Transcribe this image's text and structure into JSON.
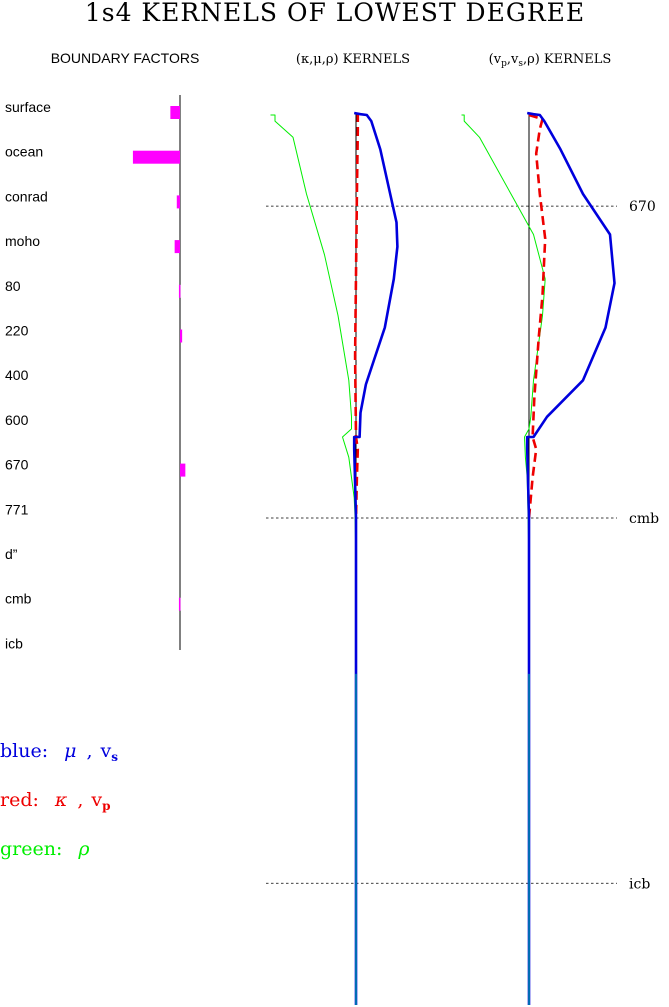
{
  "title": "1s4 KERNELS OF LOWEST DEGREE",
  "boundary_panel_title": "BOUNDARY FACTORS",
  "kernel_panel_1_title": "(κ,μ,ρ) KERNELS",
  "kernel_panel_2_title_parts": {
    "open": "(v",
    "p": "p",
    "sep1": ",v",
    "s": "s",
    "rest": ",ρ) KERNELS"
  },
  "reference_depths": [
    "670",
    "cmb",
    "icb"
  ],
  "legend": [
    {
      "color_name": "blue",
      "text": "blue:",
      "sym1": "μ",
      "sym2": "v",
      "sub": "s",
      "color": "#0000dd"
    },
    {
      "color_name": "red",
      "text": "red:",
      "sym1": "κ",
      "sym2": "v",
      "sub": "p",
      "color": "#ee0000"
    },
    {
      "color_name": "green",
      "text": "green:",
      "sym1": "ρ",
      "color": "#00ee00"
    }
  ],
  "chart_data": {
    "type": "line",
    "boundary_factors": {
      "type": "bar",
      "orientation": "horizontal",
      "color": "#ff00ff",
      "categories": [
        "surface",
        "ocean",
        "conrad",
        "moho",
        "80",
        "220",
        "400",
        "600",
        "670",
        "771",
        "d”",
        "cmb",
        "icb"
      ],
      "values": [
        -0.09,
        -0.44,
        -0.03,
        -0.05,
        -0.01,
        0.02,
        0,
        0,
        0.05,
        0,
        0,
        -0.01,
        0
      ]
    },
    "panels": [
      {
        "title": "(κ,μ,ρ) KERNELS",
        "series": [
          {
            "name": "μ",
            "color": "#0000dd",
            "points": [
              [
                -0.02,
                0
              ],
              [
                0.05,
                0.003
              ],
              [
                0.12,
                0.005
              ],
              [
                0.17,
                0.02
              ],
              [
                0.27,
                0.09
              ],
              [
                0.38,
                0.2
              ],
              [
                0.45,
                0.27
              ],
              [
                0.46,
                0.33
              ],
              [
                0.42,
                0.41
              ],
              [
                0.32,
                0.53
              ],
              [
                0.2,
                0.61
              ],
              [
                0.11,
                0.67
              ],
              [
                0.05,
                0.74
              ],
              [
                0.04,
                0.8
              ],
              [
                -0.02,
                0.8
              ],
              [
                -0.02,
                0.83
              ],
              [
                0,
                1.0
              ],
              [
                0,
                2.0
              ]
            ]
          },
          {
            "name": "κ",
            "color": "#ee0000",
            "dashed": true,
            "points": [
              [
                0.02,
                0
              ],
              [
                0.02,
                0.04
              ],
              [
                0.01,
                0.2
              ],
              [
                0.0,
                0.4
              ],
              [
                -0.01,
                0.6
              ],
              [
                0,
                0.8
              ],
              [
                0.02,
                0.83
              ],
              [
                0.01,
                0.9
              ],
              [
                0,
                1.0
              ]
            ]
          },
          {
            "name": "ρ",
            "color": "#00ee00",
            "points": [
              [
                -0.95,
                0.005
              ],
              [
                -0.9,
                0.005
              ],
              [
                -0.9,
                0.02
              ],
              [
                -0.7,
                0.06
              ],
              [
                -0.55,
                0.2
              ],
              [
                -0.35,
                0.35
              ],
              [
                -0.2,
                0.5
              ],
              [
                -0.08,
                0.66
              ],
              [
                -0.05,
                0.75
              ],
              [
                -0.05,
                0.78
              ],
              [
                -0.15,
                0.8
              ],
              [
                -0.08,
                0.85
              ],
              [
                -0.05,
                0.9
              ],
              [
                -0.02,
                0.95
              ],
              [
                -0.01,
                1.0
              ],
              [
                0,
                1.1
              ],
              [
                0,
                2.0
              ]
            ]
          }
        ]
      },
      {
        "title": "(vp,vs,ρ) KERNELS",
        "series": [
          {
            "name": "vs",
            "color": "#0000dd",
            "points": [
              [
                -0.02,
                0
              ],
              [
                0.05,
                0.003
              ],
              [
                0.12,
                0.005
              ],
              [
                0.17,
                0.02
              ],
              [
                0.35,
                0.09
              ],
              [
                0.6,
                0.2
              ],
              [
                0.9,
                0.3
              ],
              [
                0.95,
                0.42
              ],
              [
                0.85,
                0.53
              ],
              [
                0.6,
                0.66
              ],
              [
                0.2,
                0.75
              ],
              [
                0.05,
                0.8
              ],
              [
                -0.02,
                0.8
              ],
              [
                -0.02,
                0.83
              ],
              [
                0,
                1.0
              ],
              [
                0,
                2.0
              ]
            ]
          },
          {
            "name": "vp",
            "color": "#ee0000",
            "dashed": true,
            "points": [
              [
                0.0,
                0.005
              ],
              [
                0.15,
                0.015
              ],
              [
                0.12,
                0.04
              ],
              [
                0.08,
                0.1
              ],
              [
                0.12,
                0.2
              ],
              [
                0.18,
                0.31
              ],
              [
                0.15,
                0.45
              ],
              [
                0.11,
                0.55
              ],
              [
                0.06,
                0.7
              ],
              [
                0.04,
                0.8
              ],
              [
                0.08,
                0.83
              ],
              [
                0.04,
                0.9
              ],
              [
                0.02,
                0.95
              ],
              [
                0,
                1.0
              ]
            ]
          },
          {
            "name": "ρ",
            "color": "#00ee00",
            "points": [
              [
                -0.75,
                0.005
              ],
              [
                -0.72,
                0.005
              ],
              [
                -0.72,
                0.02
              ],
              [
                -0.55,
                0.06
              ],
              [
                -0.2,
                0.2
              ],
              [
                0.05,
                0.3
              ],
              [
                0.18,
                0.41
              ],
              [
                0.15,
                0.5
              ],
              [
                0.05,
                0.66
              ],
              [
                0.02,
                0.75
              ],
              [
                0.0,
                0.78
              ],
              [
                -0.05,
                0.8
              ],
              [
                -0.04,
                0.85
              ],
              [
                -0.02,
                0.9
              ],
              [
                -0.01,
                1.0
              ],
              [
                0,
                1.1
              ],
              [
                0,
                2.0
              ]
            ]
          }
        ]
      }
    ],
    "reference_depths": [
      "670",
      "cmb",
      "icb"
    ]
  }
}
